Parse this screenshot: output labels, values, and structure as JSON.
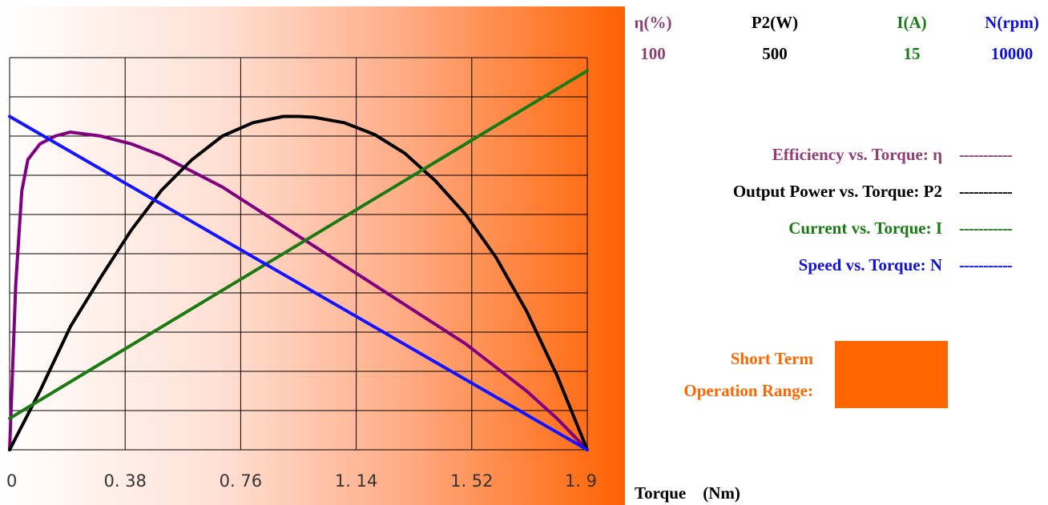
{
  "axes_header": [
    {
      "label": "η(%)",
      "max": "100",
      "color": "#8e3f74"
    },
    {
      "label": "P2(W)",
      "max": "500",
      "color": "#000000"
    },
    {
      "label": "I(A)",
      "max": "15",
      "color": "#1a7a14"
    },
    {
      "label": "N(rpm)",
      "max": "10000",
      "color": "#1010e0"
    }
  ],
  "legend": [
    {
      "label": "Efficiency vs. Torque: η",
      "dash": "-----------",
      "color": "#8e3f74"
    },
    {
      "label": "Output Power vs. Torque: P2",
      "dash": "-----------",
      "color": "#000000"
    },
    {
      "label": "Current vs. Torque: I",
      "dash": "-----------",
      "color": "#1a7a14"
    },
    {
      "label": "Speed vs. Torque: N",
      "dash": "-----------",
      "color": "#1010e0"
    }
  ],
  "short_term": {
    "line1": "Short Term",
    "line2": "Operation Range:",
    "color": "#ff6600"
  },
  "x_axis_label": "Torque    (Nm)",
  "chart_data": {
    "type": "line",
    "x_ticks": [
      "0",
      "0. 38",
      "0. 76",
      "1. 14",
      "1. 52",
      "1. 9"
    ],
    "xlim": [
      0,
      1.9
    ],
    "grid": true,
    "series": [
      {
        "name": "Efficiency vs. Torque: η",
        "axis": "η(%)",
        "ymax": 100,
        "color": "#800080",
        "x": [
          0,
          0.02,
          0.04,
          0.06,
          0.1,
          0.15,
          0.2,
          0.3,
          0.4,
          0.5,
          0.6,
          0.7,
          0.8,
          0.9,
          1.0,
          1.1,
          1.2,
          1.3,
          1.4,
          1.5,
          1.6,
          1.7,
          1.8,
          1.9
        ],
        "values": [
          0,
          42,
          66,
          74,
          78,
          80,
          81,
          80,
          78,
          75,
          71,
          67,
          62,
          57,
          52,
          47,
          42,
          37,
          32,
          27,
          21,
          15,
          8,
          0
        ]
      },
      {
        "name": "Output Power vs. Torque: P2",
        "axis": "P2(W)",
        "ymax": 500,
        "color": "#000000",
        "x": [
          0,
          0.1,
          0.2,
          0.3,
          0.4,
          0.5,
          0.6,
          0.7,
          0.8,
          0.9,
          0.95,
          1.0,
          1.1,
          1.2,
          1.3,
          1.4,
          1.5,
          1.6,
          1.7,
          1.8,
          1.9
        ],
        "values": [
          0,
          75,
          157,
          220,
          280,
          331,
          370,
          400,
          417,
          425,
          425,
          424,
          417,
          402,
          378,
          343,
          300,
          245,
          177,
          95,
          0
        ]
      },
      {
        "name": "Current vs. Torque: I",
        "axis": "I(A)",
        "ymax": 15,
        "color": "#1a7a14",
        "x": [
          0,
          1.9
        ],
        "values": [
          1.2,
          14.5
        ]
      },
      {
        "name": "Speed vs. Torque: N",
        "axis": "N(rpm)",
        "ymax": 10000,
        "color": "#1414ff",
        "x": [
          0,
          1.9
        ],
        "values": [
          8500,
          0
        ]
      }
    ]
  }
}
